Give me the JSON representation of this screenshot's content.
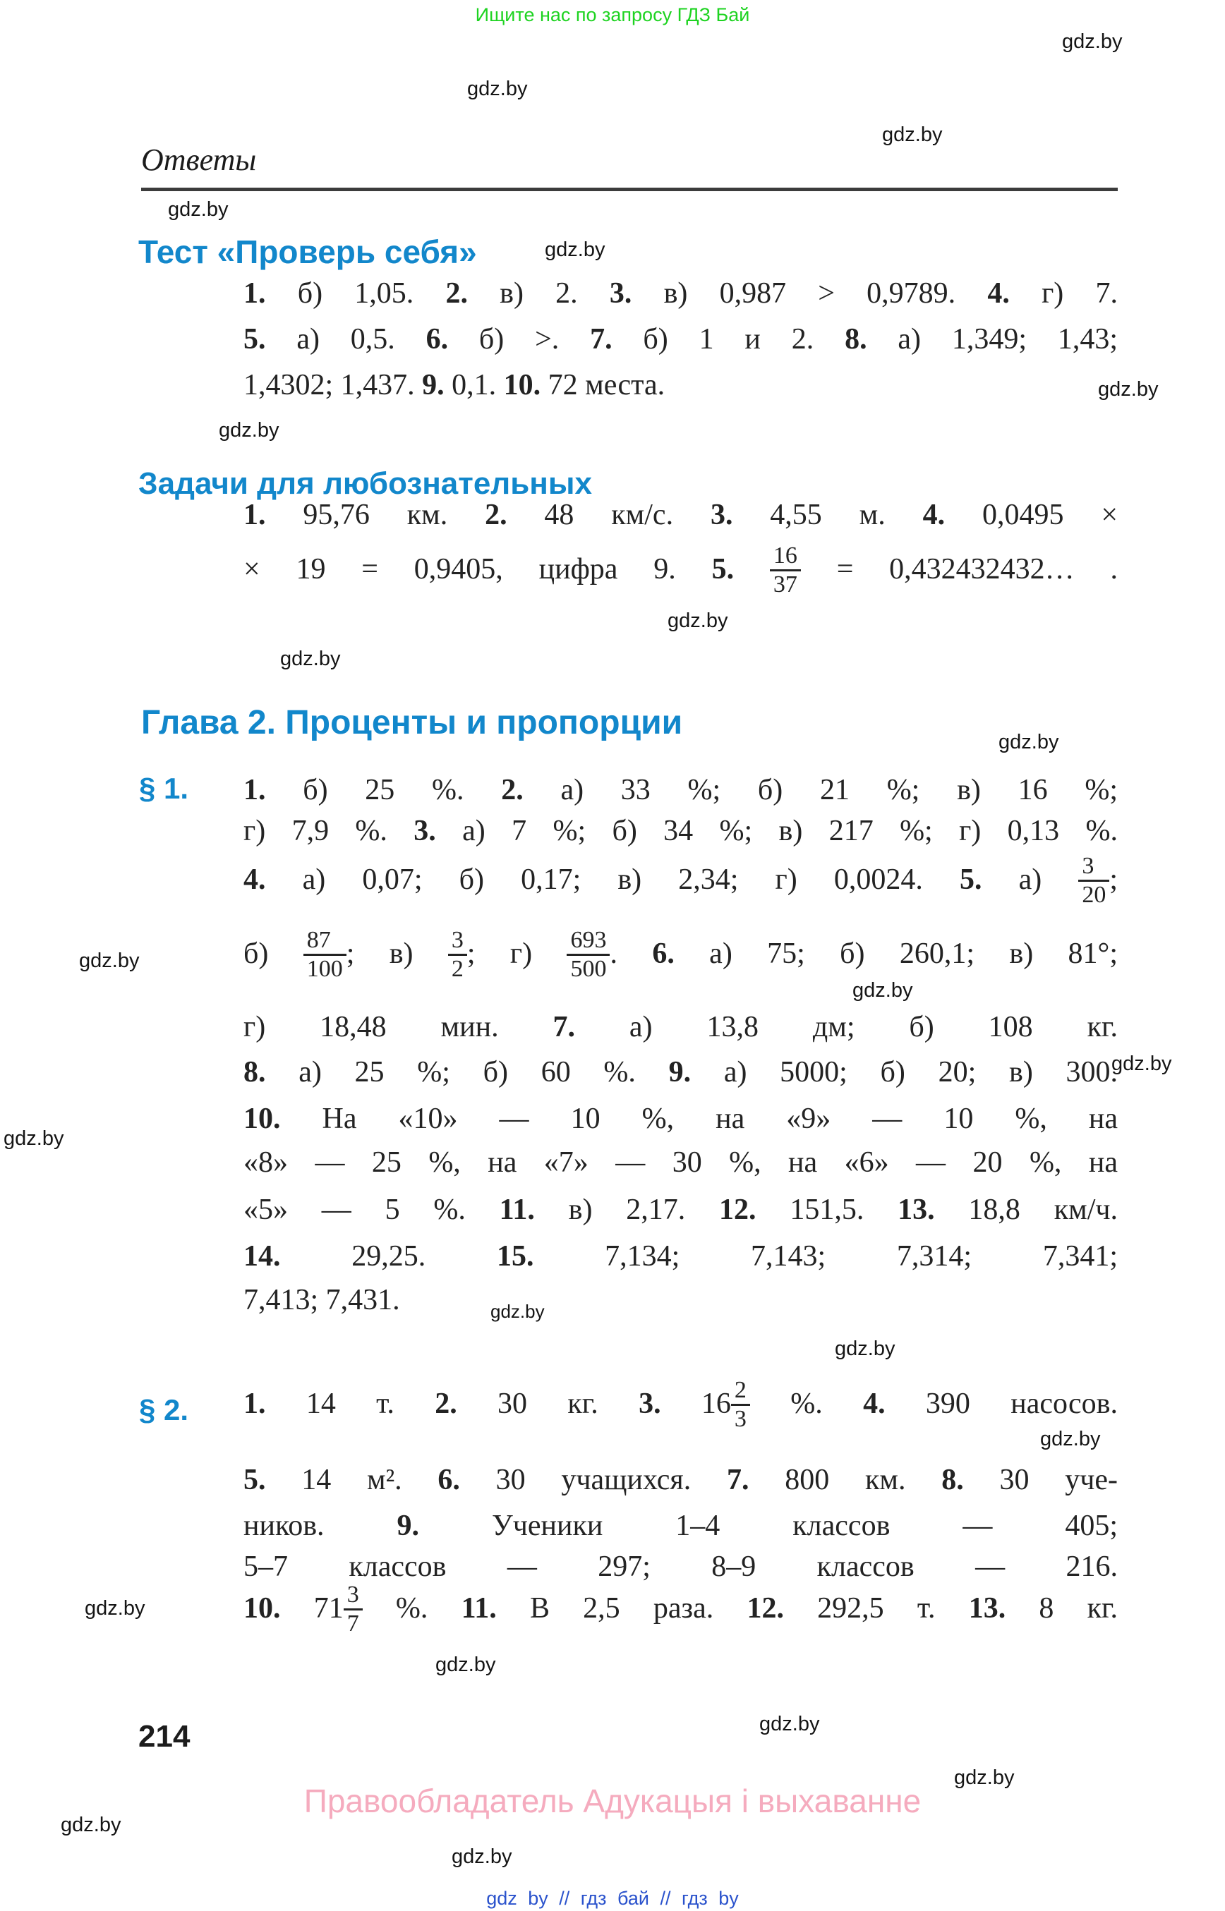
{
  "banner": {
    "text": "Ищите нас по запросу ГДЗ Бай"
  },
  "watermark": "gdz.by",
  "header": {
    "title": "Ответы"
  },
  "colors": {
    "heading_blue": "#1287cb",
    "banner_green": "#1ed321",
    "publisher_pink": "#f5abbe",
    "links_blue": "#2a52cc"
  },
  "test": {
    "title": "Тест «Проверь себя»",
    "l1": "**1.** б) 1,05. **2.** в) 2. **3.** в) 0,987 > 0,9789. **4.** г) 7.",
    "l2": "**5.** а) 0,5. **6.** б) >. **7.** б) 1 и 2. **8.** а) 1,349; 1,43;",
    "l3": "1,4302; 1,437. **9.** 0,1. **10.** 72 места."
  },
  "curious": {
    "title": "Задачи для любознательных",
    "l1": "**1.** 95,76 км. **2.** 48 км/с. **3.** 4,55 м. **4.** 0,0495 ×",
    "l2_pre": "× 19 = 0,9405, цифра 9. **5.** ",
    "l2_num": "16",
    "l2_den": "37",
    "l2_post": " = 0,432432432… ."
  },
  "chapter": {
    "title": "Глава 2. Проценты и пропорции"
  },
  "p1": {
    "label": "§ 1.",
    "l1": "**1.** б) 25 %. **2.** а) 33 %; б) 21 %; в) 16 %;",
    "l2": "г) 7,9 %. **3.** а) 7 %; б) 34 %; в) 217 %; г) 0,13 %.",
    "l3_pre": "**4.** а) 0,07; б) 0,17; в) 2,34; г) 0,0024. **5.** а) ",
    "l3_num": "3",
    "l3_den": "20",
    "l3_post": ";",
    "l4_s1": "б) ",
    "l4_f1n": "87",
    "l4_f1d": "100",
    "l4_s2": "; в) ",
    "l4_f2n": "3",
    "l4_f2d": "2",
    "l4_s3": "; г) ",
    "l4_f3n": "693",
    "l4_f3d": "500",
    "l4_s4": ". **6.** а) 75; б) 260,1; в) 81°;",
    "l5": "г) 18,48 мин. **7.** а) 13,8 дм; б) 108 кг.",
    "l6": "**8.** а) 25 %; б) 60 %. **9.** а) 5000; б) 20; в) 300.",
    "l7": "**10.** На «10» — 10 %, на «9» — 10 %, на",
    "l8": "«8» — 25 %, на «7» — 30 %, на «6» — 20 %, на",
    "l9": "«5» — 5 %. **11.** в) 2,17. **12.** 151,5. **13.** 18,8 км/ч.",
    "l10": "**14.** 29,25. **15.** 7,134; 7,143; 7,314; 7,341;",
    "l11": "7,413; 7,431."
  },
  "p2": {
    "label": "§ 2.",
    "l1_pre": "**1.** 14 т. **2.** 30 кг. **3.** 16",
    "l1_num": "2",
    "l1_den": "3",
    "l1_post": " %. **4.** 390 насосов.",
    "l2": "**5.** 14 м². **6.** 30 учащихся. **7.** 800 км. **8.** 30 уче-",
    "l3": "ников. **9.** Ученики 1–4 классов — 405;",
    "l4": "5–7 классов — 297; 8–9 классов — 216.",
    "l5_pre": "**10.** 71",
    "l5_num": "3",
    "l5_den": "7",
    "l5_post": " %. **11.** В 2,5 раза. **12.** 292,5 т. **13.** 8 кг."
  },
  "footer": {
    "page_number": "214",
    "publisher": "Правообладатель Адукацыя і выхаванне",
    "links": "gdz by // гдз бай // гдз by"
  }
}
